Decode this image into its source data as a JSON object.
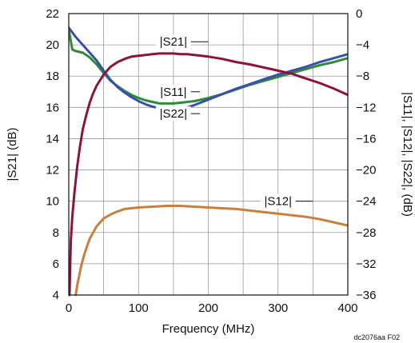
{
  "chart_data": {
    "type": "line",
    "xlabel": "Frequency (MHz)",
    "ylabel_left": "|S21| (dB)",
    "ylabel_right": "|S11|, |S12|, |S22|, (dB)",
    "xlim": [
      0,
      400
    ],
    "ylim_left": [
      4,
      22
    ],
    "ylim_right": [
      -36,
      0
    ],
    "x_ticks": [
      "0",
      "100",
      "200",
      "300",
      "400"
    ],
    "y_left_ticks": [
      "4",
      "6",
      "8",
      "10",
      "12",
      "14",
      "16",
      "18",
      "20",
      "22"
    ],
    "y_right_ticks": [
      "0",
      "−4",
      "−8",
      "−12",
      "−16",
      "−20",
      "−24",
      "−28",
      "−32",
      "−36"
    ],
    "grid": true,
    "footnote": "dc2076aa F02",
    "series": [
      {
        "name": "|S21|",
        "axis": "left",
        "color": "#8b1538",
        "x": [
          1,
          3,
          5,
          8,
          12,
          16,
          20,
          25,
          30,
          35,
          40,
          50,
          60,
          70,
          80,
          90,
          100,
          110,
          120,
          130,
          140,
          150,
          160,
          170,
          180,
          190,
          200,
          220,
          240,
          260,
          280,
          300,
          320,
          340,
          360,
          380,
          400
        ],
        "values": [
          4.0,
          7.5,
          9.0,
          10.5,
          12.2,
          13.5,
          14.6,
          15.5,
          16.3,
          16.9,
          17.4,
          18.1,
          18.6,
          18.9,
          19.1,
          19.25,
          19.3,
          19.35,
          19.4,
          19.45,
          19.45,
          19.45,
          19.4,
          19.4,
          19.35,
          19.3,
          19.25,
          19.1,
          18.9,
          18.75,
          18.55,
          18.35,
          18.15,
          17.85,
          17.55,
          17.2,
          16.8
        ]
      },
      {
        "name": "|S11|",
        "axis": "right",
        "color": "#2e8b3a",
        "x": [
          0,
          5,
          10,
          20,
          30,
          40,
          50,
          60,
          70,
          80,
          90,
          100,
          110,
          120,
          130,
          140,
          150,
          160,
          170,
          180,
          200,
          220,
          240,
          260,
          280,
          300,
          320,
          340,
          360,
          380,
          400
        ],
        "values": [
          -2.0,
          -4.6,
          -4.8,
          -5.0,
          -5.6,
          -6.5,
          -7.6,
          -8.6,
          -9.3,
          -9.9,
          -10.4,
          -10.8,
          -11.1,
          -11.3,
          -11.5,
          -11.5,
          -11.5,
          -11.4,
          -11.3,
          -11.2,
          -10.8,
          -10.3,
          -9.7,
          -9.1,
          -8.6,
          -8.1,
          -7.6,
          -7.1,
          -6.6,
          -6.2,
          -5.7
        ]
      },
      {
        "name": "|S22|",
        "axis": "right",
        "color": "#3a4fa8",
        "x": [
          0,
          5,
          10,
          20,
          30,
          40,
          50,
          60,
          70,
          80,
          90,
          100,
          110,
          120,
          130,
          140,
          150,
          160,
          170,
          180,
          200,
          220,
          240,
          260,
          280,
          300,
          320,
          340,
          360,
          380,
          400
        ],
        "values": [
          -1.8,
          -2.4,
          -3.0,
          -4.0,
          -5.0,
          -6.0,
          -7.3,
          -8.5,
          -9.4,
          -10.1,
          -10.7,
          -11.2,
          -11.6,
          -11.9,
          -12.1,
          -12.3,
          -12.3,
          -12.2,
          -12.0,
          -11.7,
          -11.0,
          -10.3,
          -9.6,
          -9.0,
          -8.4,
          -7.8,
          -7.3,
          -6.8,
          -6.2,
          -5.7,
          -5.2
        ]
      },
      {
        "name": "|S12|",
        "axis": "right",
        "color": "#c8803e",
        "x": [
          10,
          12,
          15,
          18,
          22,
          26,
          30,
          35,
          40,
          50,
          60,
          70,
          80,
          100,
          120,
          140,
          150,
          160,
          180,
          200,
          220,
          240,
          260,
          280,
          300,
          320,
          340,
          360,
          380,
          400
        ],
        "values": [
          -36.0,
          -34.8,
          -33.5,
          -32.2,
          -30.9,
          -29.8,
          -28.8,
          -28.0,
          -27.2,
          -26.2,
          -25.7,
          -25.3,
          -25.0,
          -24.8,
          -24.7,
          -24.6,
          -24.6,
          -24.6,
          -24.7,
          -24.8,
          -24.9,
          -25.0,
          -25.2,
          -25.4,
          -25.6,
          -25.8,
          -26.0,
          -26.3,
          -26.7,
          -27.1
        ]
      }
    ],
    "annotations": [
      {
        "text": "|S21|",
        "x": 150,
        "y_left": 20.2,
        "leader_to_x": 200
      },
      {
        "text": "|S11|",
        "x": 150,
        "y_left": 17.0,
        "leader_to_x": 188
      },
      {
        "text": "|S22|",
        "x": 150,
        "y_left": 15.6,
        "leader_to_x": 188
      },
      {
        "text": "|S12|",
        "x": 300,
        "y_left": 10.0,
        "leader_to_x": 350
      }
    ]
  }
}
